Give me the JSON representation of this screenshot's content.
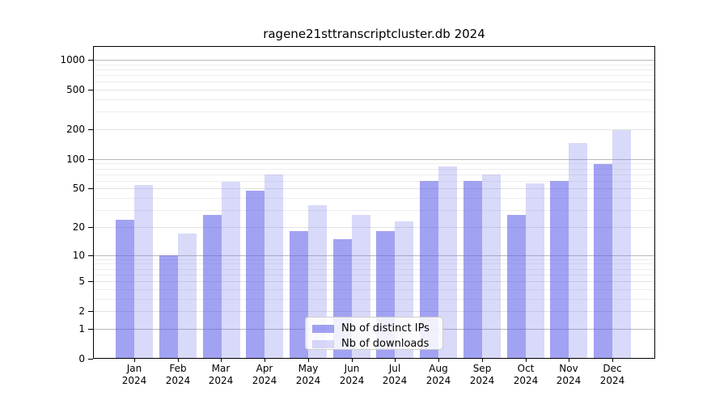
{
  "figure": {
    "background": "#ffffff"
  },
  "chart_data": {
    "type": "bar",
    "title": "ragene21sttranscriptcluster.db 2024",
    "x_months": [
      "Jan",
      "Feb",
      "Mar",
      "Apr",
      "May",
      "Jun",
      "Jul",
      "Aug",
      "Sep",
      "Oct",
      "Nov",
      "Dec"
    ],
    "x_year": "2024",
    "categories": [
      "Jan 2024",
      "Feb 2024",
      "Mar 2024",
      "Apr 2024",
      "May 2024",
      "Jun 2024",
      "Jul 2024",
      "Aug 2024",
      "Sep 2024",
      "Oct 2024",
      "Nov 2024",
      "Dec 2024"
    ],
    "series": [
      {
        "name": "Nb of distinct IPs",
        "values": [
          24,
          10,
          27,
          48,
          18,
          15,
          18,
          60,
          60,
          27,
          60,
          90
        ],
        "color": "rgba(92,92,232,0.57)",
        "color_on_white": "#a2a2ef"
      },
      {
        "name": "Nb of downloads",
        "values": [
          54,
          17,
          59,
          70,
          34,
          27,
          23,
          85,
          70,
          57,
          145,
          195
        ],
        "color": "rgba(120,120,232,0.28)",
        "color_on_white": "#d9d9f8"
      }
    ],
    "yscale": "log1p",
    "yticks": [
      0,
      1,
      2,
      5,
      10,
      20,
      50,
      100,
      200,
      500,
      1000
    ],
    "yminor_ticks": [
      3,
      4,
      6,
      7,
      8,
      9,
      30,
      40,
      60,
      70,
      80,
      90,
      300,
      400,
      600,
      700,
      800,
      900
    ],
    "ylim": [
      0,
      1375
    ],
    "grid": true,
    "legend_position": "lower center",
    "style": {
      "grid_major_color": "#b9b9b9",
      "grid_mid_color": "#e2e2e2",
      "grid_minor_color": "#ededed",
      "spine_color": "#000000",
      "legend_border_color": "#cccccc"
    }
  }
}
